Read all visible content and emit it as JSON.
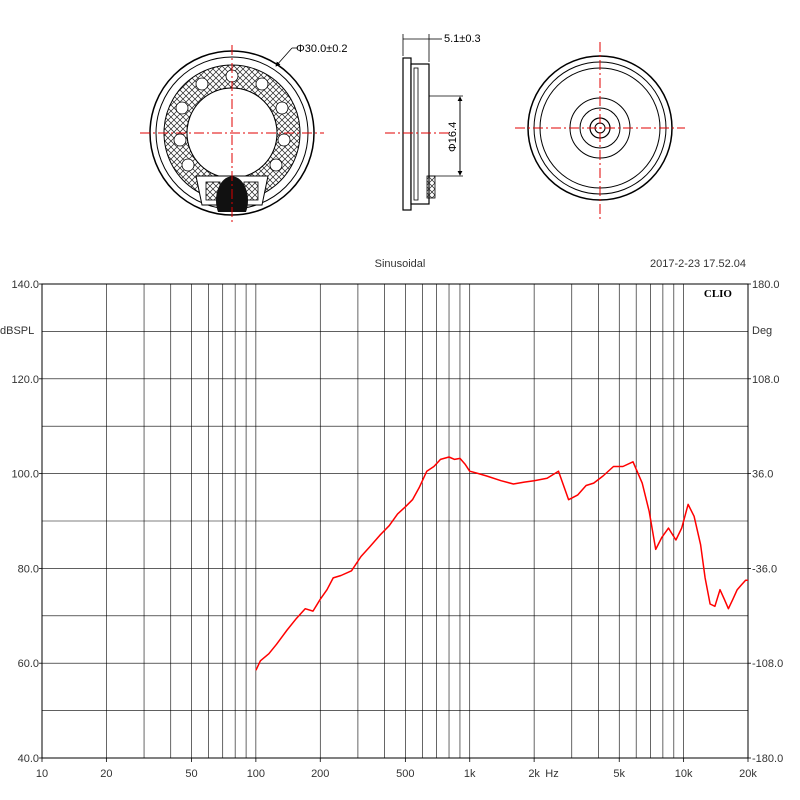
{
  "drawings": {
    "front_dimension": "Φ30.0±0.2",
    "side_thickness": "5.1±0.3",
    "side_inner_dimension": "Φ16.4"
  },
  "chart_data": {
    "type": "line",
    "title": "Sinusoidal",
    "timestamp": "2017-2-23 17.52.04",
    "brand": "CLIO",
    "left_axis_unit": "dBSPL",
    "right_axis_unit": "Deg",
    "x_unit": "Hz",
    "x_scale": "log",
    "xlim": [
      10,
      20000
    ],
    "ylim": [
      40,
      140
    ],
    "y2lim": [
      -180,
      180
    ],
    "x_tick_labels": [
      {
        "v": 10,
        "label": "10"
      },
      {
        "v": 20,
        "label": "20"
      },
      {
        "v": 50,
        "label": "50"
      },
      {
        "v": 100,
        "label": "100"
      },
      {
        "v": 200,
        "label": "200"
      },
      {
        "v": 500,
        "label": "500"
      },
      {
        "v": 1000,
        "label": "1k"
      },
      {
        "v": 2000,
        "label": "2k"
      },
      {
        "v": 5000,
        "label": "5k"
      },
      {
        "v": 10000,
        "label": "10k"
      },
      {
        "v": 20000,
        "label": "20k"
      }
    ],
    "y_tick_labels": [
      {
        "v": 140,
        "label": "140.0"
      },
      {
        "v": 120,
        "label": "120.0"
      },
      {
        "v": 100,
        "label": "100.0"
      },
      {
        "v": 80,
        "label": "80.0"
      },
      {
        "v": 60,
        "label": "60.0"
      },
      {
        "v": 40,
        "label": "40.0"
      }
    ],
    "y2_tick_labels": [
      {
        "v": 180,
        "label": "180.0"
      },
      {
        "v": 108,
        "label": "108.0"
      },
      {
        "v": 36,
        "label": "36.0"
      },
      {
        "v": -36,
        "label": "-36.0"
      },
      {
        "v": -108,
        "label": "-108.0"
      },
      {
        "v": -180,
        "label": "-180.0"
      }
    ],
    "grid": true,
    "series": [
      {
        "color": "#ff0000",
        "x": [
          100,
          105,
          115,
          125,
          140,
          155,
          170,
          185,
          200,
          215,
          230,
          250,
          280,
          310,
          340,
          380,
          420,
          460,
          500,
          540,
          580,
          630,
          680,
          730,
          800,
          850,
          900,
          950,
          1000,
          1100,
          1200,
          1400,
          1600,
          1800,
          2000,
          2300,
          2600,
          2900,
          3200,
          3500,
          3800,
          4200,
          4700,
          5200,
          5800,
          6400,
          6900,
          7400,
          7900,
          8500,
          9200,
          9800,
          10500,
          11200,
          12000,
          12600,
          13300,
          14000,
          14800,
          15500,
          16200,
          17000,
          17800,
          18600,
          19500,
          20000
        ],
        "values": [
          58.5,
          60.5,
          62.0,
          64.0,
          67.0,
          69.5,
          71.5,
          71.0,
          73.5,
          75.5,
          78.0,
          78.5,
          79.5,
          82.5,
          84.5,
          87.0,
          89.0,
          91.5,
          93.0,
          94.5,
          97.0,
          100.5,
          101.5,
          103.0,
          103.5,
          103.0,
          103.2,
          102.0,
          100.5,
          100.0,
          99.5,
          98.5,
          97.8,
          98.2,
          98.5,
          99.0,
          100.5,
          94.5,
          95.5,
          97.5,
          98.0,
          99.5,
          101.5,
          101.5,
          102.5,
          98.0,
          92.0,
          84.0,
          86.5,
          88.5,
          86.0,
          88.5,
          93.5,
          91.0,
          85.0,
          78.0,
          72.5,
          72.0,
          75.5,
          73.5,
          71.5,
          73.5,
          75.5,
          76.5,
          77.5,
          77.5
        ]
      }
    ]
  }
}
